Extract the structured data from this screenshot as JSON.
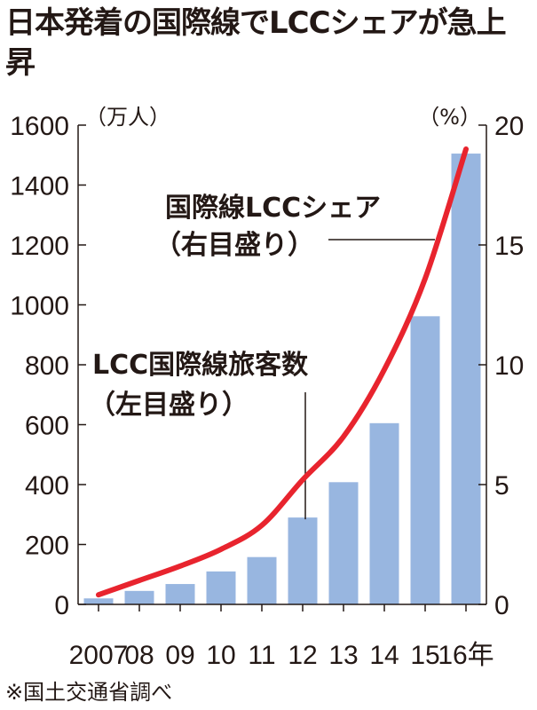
{
  "title": "日本発着の国際線でLCCシェアが急上昇",
  "source": "※国土交通省調べ",
  "colors": {
    "bar": "#98b6e0",
    "line": "#e8242e",
    "text": "#231815"
  },
  "chart_data": {
    "type": "bar",
    "title": "日本発着の国際線でLCCシェアが急上昇",
    "categories": [
      "2007",
      "08",
      "09",
      "10",
      "11",
      "12",
      "13",
      "14",
      "15",
      "16年"
    ],
    "left_axis": {
      "unit_label": "（万人）",
      "ylim": [
        0,
        1600
      ],
      "ticks": [
        "0",
        "200",
        "400",
        "600",
        "800",
        "1000",
        "1200",
        "1400",
        "1600"
      ]
    },
    "right_axis": {
      "unit_label": "（%）",
      "ylim": [
        0,
        20
      ],
      "ticks": [
        "0",
        "5",
        "10",
        "15",
        "20"
      ]
    },
    "series": [
      {
        "name": "LCC国際線旅客数",
        "axis_note": "（左目盛り）",
        "type": "bar",
        "values": [
          20,
          45,
          68,
          110,
          158,
          290,
          408,
          605,
          962,
          1505
        ]
      },
      {
        "name": "国際線LCCシェア",
        "axis_note": "（右目盛り）",
        "type": "line",
        "values": [
          0.4,
          1.0,
          1.6,
          2.3,
          3.3,
          5.2,
          7.0,
          9.8,
          13.6,
          19.0
        ]
      }
    ],
    "grid": false,
    "legend": "annotations"
  }
}
